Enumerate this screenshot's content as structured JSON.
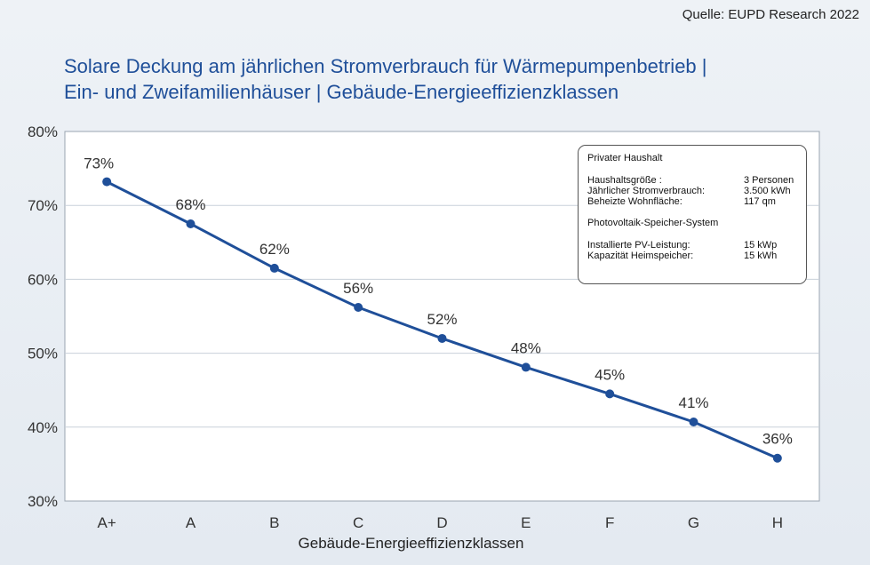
{
  "source": "Quelle: EUPD Research 2022",
  "title_line1": "Solare Deckung am jährlichen Stromverbrauch für Wärmepumpenbetrieb |",
  "title_line2": "Ein- und Zweifamilienhäuser | Gebäude-Energieeffizienzklassen",
  "colors": {
    "line": "#1f4f99",
    "title": "#1f4f99",
    "grid": "#c8d0da",
    "plot_bg": "#ffffff"
  },
  "infobox": {
    "heading1": "Privater Haushalt",
    "rows1": [
      {
        "label": "Haushaltsgröße    :",
        "value": "3 Personen"
      },
      {
        "label": "Jährlicher Stromverbrauch:",
        "value": "3.500 kWh"
      },
      {
        "label": "Beheizte Wohnfläche:",
        "value": "117 qm"
      }
    ],
    "heading2": "Photovoltaik-Speicher-System",
    "rows2": [
      {
        "label": "Installierte PV-Leistung:",
        "value": "15 kWp"
      },
      {
        "label": "Kapazität Heimspeicher:",
        "value": "15 kWh"
      }
    ]
  },
  "chart_data": {
    "type": "line",
    "title": "Solare Deckung am jährlichen Stromverbrauch für Wärmepumpenbetrieb | Ein- und Zweifamilienhäuser | Gebäude-Energieeffizienzklassen",
    "xlabel": "Gebäude-Energieeffizienzklassen",
    "ylabel": "",
    "categories": [
      "A+",
      "A",
      "B",
      "C",
      "D",
      "E",
      "F",
      "G",
      "H"
    ],
    "values": [
      73.2,
      67.5,
      61.5,
      56.2,
      52.0,
      48.1,
      44.5,
      40.7,
      35.8
    ],
    "data_labels": [
      "73%",
      "68%",
      "62%",
      "56%",
      "52%",
      "48%",
      "45%",
      "41%",
      "36%"
    ],
    "ylim": [
      30,
      80
    ],
    "yticks": [
      30,
      40,
      50,
      60,
      70,
      80
    ],
    "ytick_labels": [
      "30%",
      "40%",
      "50%",
      "60%",
      "70%",
      "80%"
    ],
    "grid": true,
    "legend": "none"
  }
}
